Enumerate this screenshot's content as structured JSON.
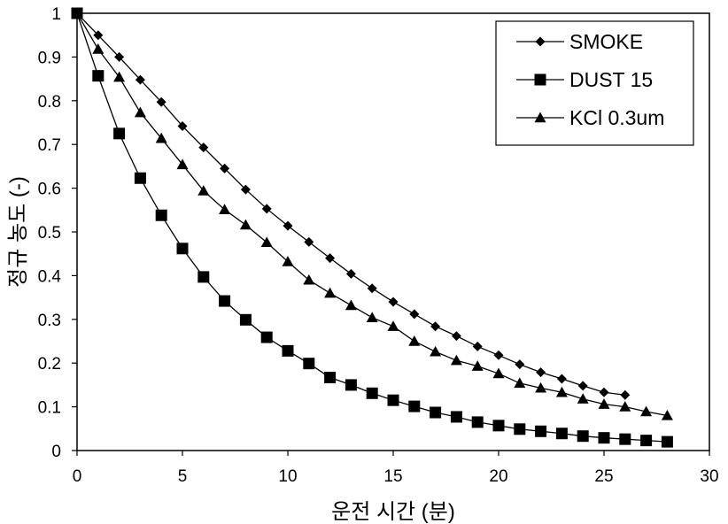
{
  "chart_data": {
    "type": "line",
    "xlabel": "운전 시간 (분)",
    "ylabel": "정규 농도 (-)",
    "xlim": [
      0,
      30
    ],
    "ylim": [
      0,
      1
    ],
    "xticks": [
      0,
      5,
      10,
      15,
      20,
      25,
      30
    ],
    "yticks": [
      0,
      0.1,
      0.2,
      0.3,
      0.4,
      0.5,
      0.6,
      0.7,
      0.8,
      0.9,
      1
    ],
    "x_tick_labels": [
      "0",
      "5",
      "10",
      "15",
      "20",
      "25",
      "30"
    ],
    "y_tick_labels": [
      "0",
      "0.1",
      "0.2",
      "0.3",
      "0.4",
      "0.5",
      "0.6",
      "0.7",
      "0.8",
      "0.9",
      "1"
    ],
    "grid": false,
    "legend_position": "top-right",
    "series": [
      {
        "name": "SMOKE",
        "marker": "diamond",
        "color": "#000000",
        "x": [
          0,
          1,
          2,
          3,
          4,
          5,
          6,
          7,
          8,
          9,
          10,
          11,
          12,
          13,
          14,
          15,
          16,
          17,
          18,
          19,
          20,
          21,
          22,
          23,
          24,
          25,
          26
        ],
        "y": [
          1,
          0.95,
          0.9,
          0.848,
          0.797,
          0.742,
          0.693,
          0.645,
          0.597,
          0.553,
          0.514,
          0.477,
          0.44,
          0.404,
          0.371,
          0.34,
          0.312,
          0.284,
          0.262,
          0.238,
          0.218,
          0.197,
          0.179,
          0.164,
          0.148,
          0.133,
          0.127
        ]
      },
      {
        "name": "DUST 15",
        "marker": "square",
        "color": "#000000",
        "x": [
          0,
          1,
          2,
          3,
          4,
          5,
          6,
          7,
          8,
          9,
          10,
          11,
          12,
          13,
          14,
          15,
          16,
          17,
          18,
          19,
          20,
          21,
          22,
          23,
          24,
          25,
          26,
          27,
          28
        ],
        "y": [
          1,
          0.857,
          0.725,
          0.623,
          0.538,
          0.462,
          0.397,
          0.342,
          0.299,
          0.259,
          0.228,
          0.199,
          0.167,
          0.15,
          0.131,
          0.115,
          0.101,
          0.087,
          0.077,
          0.065,
          0.057,
          0.049,
          0.044,
          0.039,
          0.033,
          0.029,
          0.026,
          0.023,
          0.02
        ]
      },
      {
        "name": "KCl 0.3um",
        "marker": "triangle",
        "color": "#000000",
        "x": [
          0,
          1,
          2,
          3,
          4,
          5,
          6,
          7,
          8,
          9,
          10,
          11,
          12,
          13,
          14,
          15,
          16,
          17,
          18,
          19,
          20,
          21,
          22,
          23,
          24,
          25,
          26,
          27,
          28
        ],
        "y": [
          1,
          0.918,
          0.854,
          0.773,
          0.714,
          0.654,
          0.594,
          0.551,
          0.516,
          0.476,
          0.432,
          0.39,
          0.36,
          0.332,
          0.304,
          0.284,
          0.25,
          0.226,
          0.206,
          0.193,
          0.176,
          0.154,
          0.143,
          0.133,
          0.118,
          0.106,
          0.1,
          0.089,
          0.08
        ]
      }
    ]
  }
}
